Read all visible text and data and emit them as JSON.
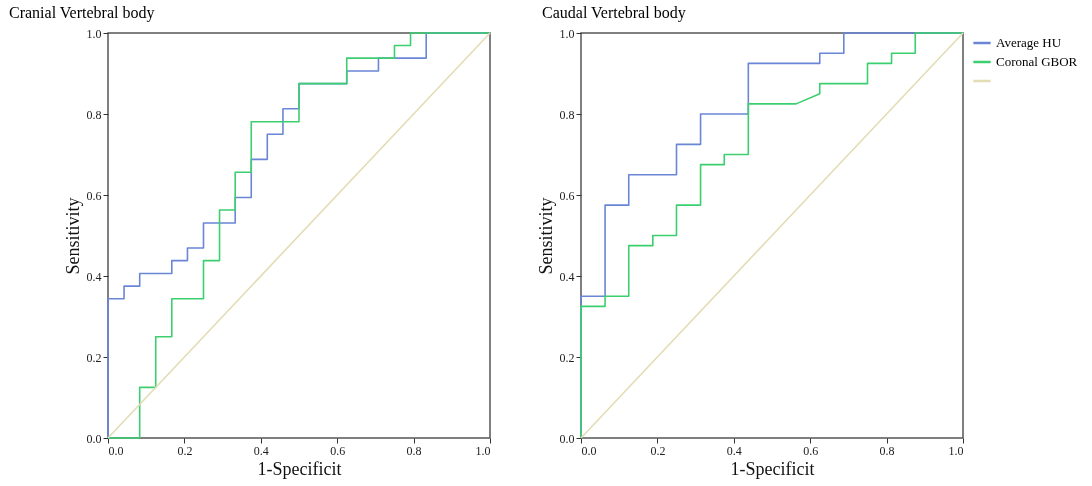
{
  "chart_data": [
    {
      "type": "line",
      "title": "Cranial Vertebral body",
      "xlabel": "1-Specificit",
      "ylabel": "Sensitivity",
      "xlim": [
        0,
        1
      ],
      "ylim": [
        0,
        1
      ],
      "xticks": [
        {
          "value": 0,
          "label": "0.0"
        },
        {
          "value": 0.2,
          "label": "0.2"
        },
        {
          "value": 0.4,
          "label": "0.4"
        },
        {
          "value": 0.6,
          "label": "0.6"
        },
        {
          "value": 0.8,
          "label": "0.8"
        },
        {
          "value": 1,
          "label": "1.0"
        }
      ],
      "yticks": [
        {
          "value": 0,
          "label": "0.0"
        },
        {
          "value": 0.2,
          "label": "0.2"
        },
        {
          "value": 0.4,
          "label": "0.4"
        },
        {
          "value": 0.6,
          "label": "0.6"
        },
        {
          "value": 0.8,
          "label": "0.8"
        },
        {
          "value": 1,
          "label": "1.0"
        }
      ],
      "grid": false,
      "legend": false,
      "series": [
        {
          "color": "#6a86d6",
          "x": [
            0,
            0,
            0.042,
            0.042,
            0.083,
            0.083,
            0.167,
            0.167,
            0.208,
            0.208,
            0.25,
            0.25,
            0.333,
            0.333,
            0.375,
            0.375,
            0.417,
            0.417,
            0.458,
            0.458,
            0.5,
            0.5,
            0.625,
            0.625,
            0.708,
            0.708,
            0.833,
            0.833,
            1
          ],
          "values": [
            0,
            0.344,
            0.344,
            0.375,
            0.375,
            0.406,
            0.406,
            0.438,
            0.438,
            0.469,
            0.469,
            0.531,
            0.531,
            0.594,
            0.594,
            0.688,
            0.688,
            0.75,
            0.75,
            0.813,
            0.813,
            0.875,
            0.875,
            0.906,
            0.906,
            0.938,
            0.938,
            1,
            1
          ]
        },
        {
          "color": "#3ccf70",
          "x": [
            0,
            0.083,
            0.083,
            0.125,
            0.125,
            0.167,
            0.167,
            0.25,
            0.25,
            0.292,
            0.292,
            0.333,
            0.333,
            0.375,
            0.375,
            0.5,
            0.5,
            0.625,
            0.625,
            0.75,
            0.75,
            0.792,
            0.792,
            1
          ],
          "values": [
            0,
            0,
            0.125,
            0.125,
            0.25,
            0.25,
            0.344,
            0.344,
            0.438,
            0.438,
            0.563,
            0.563,
            0.656,
            0.656,
            0.781,
            0.781,
            0.875,
            0.875,
            0.938,
            0.938,
            0.969,
            0.969,
            1,
            1
          ]
        },
        {
          "color": "#e3dcb4",
          "x": [
            0,
            1
          ],
          "values": [
            0,
            1
          ]
        }
      ]
    },
    {
      "type": "line",
      "title": "Caudal Vertebral body",
      "xlabel": "1-Specificit",
      "ylabel": "Sensitivity",
      "xlim": [
        0,
        1
      ],
      "ylim": [
        0,
        1
      ],
      "xticks": [
        {
          "value": 0,
          "label": "0.0"
        },
        {
          "value": 0.2,
          "label": "0.2"
        },
        {
          "value": 0.4,
          "label": "0.4"
        },
        {
          "value": 0.6,
          "label": "0.6"
        },
        {
          "value": 0.8,
          "label": "0.8"
        },
        {
          "value": 1,
          "label": "1.0"
        }
      ],
      "yticks": [
        {
          "value": 0,
          "label": "0.0"
        },
        {
          "value": 0.2,
          "label": "0.2"
        },
        {
          "value": 0.4,
          "label": "0.4"
        },
        {
          "value": 0.6,
          "label": "0.6"
        },
        {
          "value": 0.8,
          "label": "0.8"
        },
        {
          "value": 1,
          "label": "1.0"
        }
      ],
      "grid": false,
      "legend": "right",
      "series": [
        {
          "name": "Average HU",
          "color": "#6a86d6",
          "x": [
            0,
            0,
            0.063,
            0.063,
            0.125,
            0.125,
            0.25,
            0.25,
            0.313,
            0.313,
            0.438,
            0.438,
            0.625,
            0.625,
            0.688,
            0.688,
            1
          ],
          "values": [
            0,
            0.35,
            0.35,
            0.575,
            0.575,
            0.65,
            0.65,
            0.725,
            0.725,
            0.8,
            0.8,
            0.925,
            0.925,
            0.95,
            0.95,
            1,
            1
          ]
        },
        {
          "name": "Coronal GBOR",
          "color": "#3ccf70",
          "x": [
            0,
            0,
            0.063,
            0.063,
            0.125,
            0.125,
            0.188,
            0.188,
            0.25,
            0.25,
            0.313,
            0.313,
            0.375,
            0.375,
            0.438,
            0.438,
            0.563,
            0.625,
            0.625,
            0.75,
            0.75,
            0.813,
            0.813,
            0.875,
            0.875,
            1
          ],
          "values": [
            0,
            0.325,
            0.325,
            0.35,
            0.35,
            0.475,
            0.475,
            0.5,
            0.5,
            0.575,
            0.575,
            0.675,
            0.675,
            0.7,
            0.7,
            0.825,
            0.825,
            0.85,
            0.875,
            0.875,
            0.925,
            0.925,
            0.95,
            0.95,
            1,
            1
          ]
        },
        {
          "color": "#e3dcb4",
          "x": [
            0,
            1
          ],
          "values": [
            0,
            1
          ]
        }
      ]
    }
  ]
}
